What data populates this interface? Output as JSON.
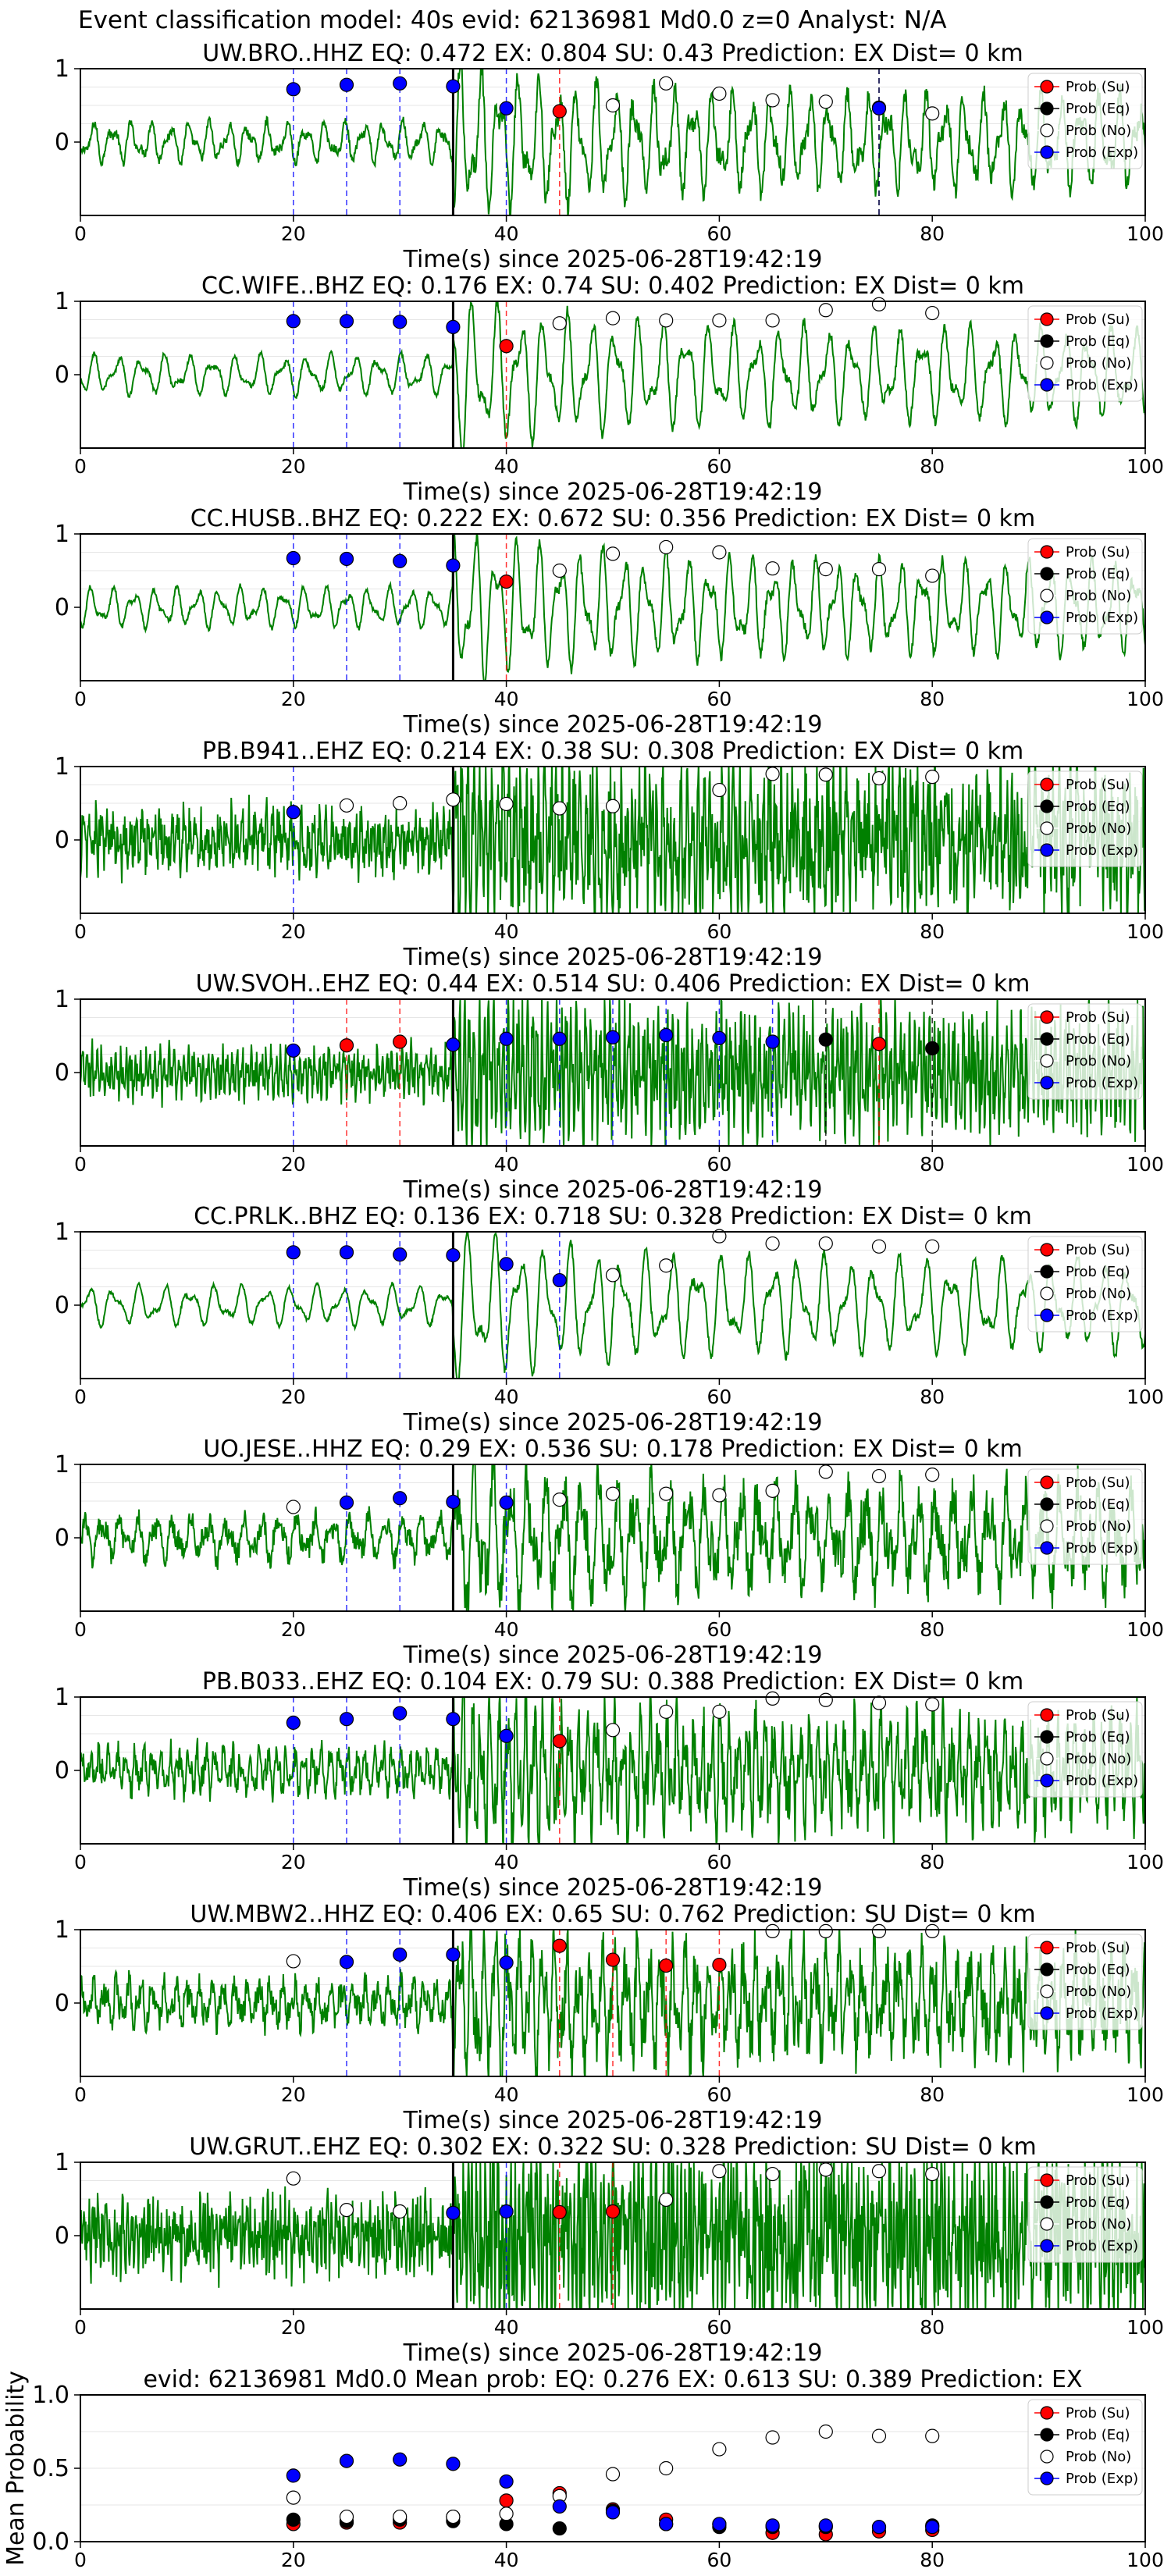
{
  "suptitle": "Event classification model: 40s evid: 62136981 Md0.0 z=0 Analyst: N/A",
  "colors": {
    "waveform": "#008000",
    "su": "#ff0000",
    "eq": "#000000",
    "no": "#ffffff",
    "exp": "#0000ff",
    "arrival_line": "#000000",
    "grid": "#e6e6e6"
  },
  "legend": {
    "placement": "top-right",
    "entries": [
      "Prob (Su)",
      "Prob (Eq)",
      "Prob (No)",
      "Prob (Exp)"
    ]
  },
  "chart_data": [
    {
      "type": "line",
      "title": "UW.BRO..HHZ    EQ: 0.472   EX: 0.804   SU: 0.43    Prediction: EX     Dist= 0 km",
      "xlabel": "Time(s) since 2025-06-28T19:42:19",
      "ylabel": "",
      "xlim": [
        0,
        100
      ],
      "ylim": [
        -1,
        1
      ],
      "xticks": [
        "0",
        "20",
        "40",
        "60",
        "80",
        "100"
      ],
      "yticks": [
        "0",
        "1"
      ],
      "arrival_time": 35,
      "waveform_noise": 0.1,
      "waveform_main_freq": 0.55,
      "grid": true,
      "points": {
        "exp": [
          [
            20,
            0.72
          ],
          [
            25,
            0.78
          ],
          [
            30,
            0.8
          ],
          [
            35,
            0.76
          ],
          [
            40,
            0.46
          ],
          [
            75,
            0.46
          ]
        ],
        "su": [
          [
            45,
            0.42
          ]
        ],
        "eq": [
          [
            75,
            0.47
          ]
        ],
        "no": [
          [
            50,
            0.5
          ],
          [
            55,
            0.8
          ],
          [
            60,
            0.66
          ],
          [
            65,
            0.57
          ],
          [
            70,
            0.55
          ],
          [
            80,
            0.39
          ]
        ]
      }
    },
    {
      "type": "line",
      "title": "CC.WIFE..BHZ    EQ: 0.176   EX: 0.74   SU: 0.402    Prediction: EX     Dist= 0 km",
      "xlabel": "Time(s) since 2025-06-28T19:42:19",
      "ylabel": "",
      "xlim": [
        0,
        100
      ],
      "ylim": [
        -1,
        1
      ],
      "xticks": [
        "0",
        "20",
        "40",
        "60",
        "80",
        "100"
      ],
      "yticks": [
        "0",
        "1"
      ],
      "arrival_time": 35,
      "waveform_noise": 0.05,
      "waveform_main_freq": 0.45,
      "grid": true,
      "points": {
        "exp": [
          [
            20,
            0.73
          ],
          [
            25,
            0.73
          ],
          [
            30,
            0.72
          ],
          [
            35,
            0.65
          ]
        ],
        "su": [
          [
            40,
            0.39
          ]
        ],
        "eq": [],
        "no": [
          [
            45,
            0.7
          ],
          [
            50,
            0.77
          ],
          [
            55,
            0.74
          ],
          [
            60,
            0.74
          ],
          [
            65,
            0.74
          ],
          [
            70,
            0.88
          ],
          [
            75,
            0.96
          ],
          [
            80,
            0.84
          ]
        ]
      }
    },
    {
      "type": "line",
      "title": "CC.HUSB..BHZ    EQ: 0.222   EX: 0.672   SU: 0.356    Prediction: EX     Dist= 0 km",
      "xlabel": "Time(s) since 2025-06-28T19:42:19",
      "ylabel": "",
      "xlim": [
        0,
        100
      ],
      "ylim": [
        -1,
        1
      ],
      "xticks": [
        "0",
        "20",
        "40",
        "60",
        "80",
        "100"
      ],
      "yticks": [
        "0",
        "1"
      ],
      "arrival_time": 35,
      "waveform_noise": 0.05,
      "waveform_main_freq": 0.5,
      "grid": true,
      "points": {
        "exp": [
          [
            20,
            0.67
          ],
          [
            25,
            0.66
          ],
          [
            30,
            0.63
          ],
          [
            35,
            0.57
          ]
        ],
        "su": [
          [
            40,
            0.35
          ]
        ],
        "eq": [],
        "no": [
          [
            45,
            0.5
          ],
          [
            50,
            0.73
          ],
          [
            55,
            0.82
          ],
          [
            60,
            0.75
          ],
          [
            65,
            0.53
          ],
          [
            70,
            0.52
          ],
          [
            75,
            0.52
          ],
          [
            80,
            0.43
          ]
        ]
      }
    },
    {
      "type": "line",
      "title": "PB.B941..EHZ    EQ: 0.214   EX: 0.38   SU: 0.308    Prediction: EX     Dist= 0 km",
      "xlabel": "Time(s) since 2025-06-28T19:42:19",
      "ylabel": "",
      "xlim": [
        0,
        100
      ],
      "ylim": [
        -1,
        1
      ],
      "xticks": [
        "0",
        "20",
        "40",
        "60",
        "80",
        "100"
      ],
      "yticks": [
        "0",
        "1"
      ],
      "arrival_time": 35,
      "waveform_noise": 0.55,
      "waveform_main_freq": 1.8,
      "grid": true,
      "points": {
        "exp": [
          [
            20,
            0.38
          ]
        ],
        "su": [],
        "eq": [],
        "no": [
          [
            25,
            0.47
          ],
          [
            30,
            0.5
          ],
          [
            35,
            0.55
          ],
          [
            40,
            0.49
          ],
          [
            45,
            0.43
          ],
          [
            50,
            0.46
          ],
          [
            60,
            0.68
          ],
          [
            65,
            0.9
          ],
          [
            70,
            0.89
          ],
          [
            75,
            0.84
          ],
          [
            80,
            0.86
          ]
        ]
      }
    },
    {
      "type": "line",
      "title": "UW.SVOH..EHZ    EQ: 0.44   EX: 0.514   SU: 0.406    Prediction: EX     Dist= 0 km",
      "xlabel": "Time(s) since 2025-06-28T19:42:19",
      "ylabel": "",
      "xlim": [
        0,
        100
      ],
      "ylim": [
        -1,
        1
      ],
      "xticks": [
        "0",
        "20",
        "40",
        "60",
        "80",
        "100"
      ],
      "yticks": [
        "0",
        "1"
      ],
      "arrival_time": 35,
      "waveform_noise": 0.35,
      "waveform_main_freq": 2.2,
      "grid": true,
      "points": {
        "exp": [
          [
            20,
            0.3
          ],
          [
            35,
            0.38
          ],
          [
            40,
            0.46
          ],
          [
            45,
            0.46
          ],
          [
            50,
            0.48
          ],
          [
            55,
            0.51
          ],
          [
            60,
            0.47
          ],
          [
            65,
            0.42
          ]
        ],
        "su": [
          [
            25,
            0.37
          ],
          [
            30,
            0.42
          ],
          [
            75,
            0.39
          ]
        ],
        "eq": [
          [
            70,
            0.45
          ],
          [
            80,
            0.33
          ]
        ],
        "no": []
      }
    },
    {
      "type": "line",
      "title": "CC.PRLK..BHZ    EQ: 0.136   EX: 0.718   SU: 0.328    Prediction: EX     Dist= 0 km",
      "xlabel": "Time(s) since 2025-06-28T19:42:19",
      "ylabel": "",
      "xlim": [
        0,
        100
      ],
      "ylim": [
        -1,
        1
      ],
      "xticks": [
        "0",
        "20",
        "40",
        "60",
        "80",
        "100"
      ],
      "yticks": [
        "0",
        "1"
      ],
      "arrival_time": 35,
      "waveform_noise": 0.04,
      "waveform_main_freq": 0.42,
      "grid": true,
      "points": {
        "exp": [
          [
            20,
            0.72
          ],
          [
            25,
            0.72
          ],
          [
            30,
            0.69
          ],
          [
            35,
            0.68
          ],
          [
            40,
            0.56
          ],
          [
            45,
            0.34
          ]
        ],
        "su": [],
        "eq": [],
        "no": [
          [
            50,
            0.41
          ],
          [
            55,
            0.54
          ],
          [
            60,
            0.94
          ],
          [
            65,
            0.84
          ],
          [
            70,
            0.84
          ],
          [
            75,
            0.8
          ],
          [
            80,
            0.8
          ]
        ]
      }
    },
    {
      "type": "line",
      "title": "UO.JESE..HHZ    EQ: 0.29   EX: 0.536   SU: 0.178    Prediction: EX     Dist= 0 km",
      "xlabel": "Time(s) since 2025-06-28T19:42:19",
      "ylabel": "",
      "xlim": [
        0,
        100
      ],
      "ylim": [
        -1,
        1
      ],
      "xticks": [
        "0",
        "20",
        "40",
        "60",
        "80",
        "100"
      ],
      "yticks": [
        "0",
        "1"
      ],
      "arrival_time": 35,
      "waveform_noise": 0.25,
      "waveform_main_freq": 0.6,
      "grid": true,
      "points": {
        "exp": [
          [
            25,
            0.48
          ],
          [
            30,
            0.54
          ],
          [
            35,
            0.49
          ],
          [
            40,
            0.48
          ]
        ],
        "su": [],
        "eq": [],
        "no": [
          [
            20,
            0.42
          ],
          [
            45,
            0.52
          ],
          [
            50,
            0.6
          ],
          [
            55,
            0.6
          ],
          [
            60,
            0.58
          ],
          [
            65,
            0.64
          ],
          [
            70,
            0.9
          ],
          [
            75,
            0.84
          ],
          [
            80,
            0.86
          ]
        ]
      }
    },
    {
      "type": "line",
      "title": "PB.B033..EHZ    EQ: 0.104   EX: 0.79   SU: 0.388    Prediction: EX     Dist= 0 km",
      "xlabel": "Time(s) since 2025-06-28T19:42:19",
      "ylabel": "",
      "xlim": [
        0,
        100
      ],
      "ylim": [
        -1,
        1
      ],
      "xticks": [
        "0",
        "20",
        "40",
        "60",
        "80",
        "100"
      ],
      "yticks": [
        "0",
        "1"
      ],
      "arrival_time": 35,
      "waveform_noise": 0.3,
      "waveform_main_freq": 1.2,
      "grid": true,
      "points": {
        "exp": [
          [
            20,
            0.65
          ],
          [
            25,
            0.7
          ],
          [
            30,
            0.78
          ],
          [
            35,
            0.7
          ],
          [
            40,
            0.47
          ]
        ],
        "su": [
          [
            45,
            0.4
          ]
        ],
        "eq": [],
        "no": [
          [
            50,
            0.55
          ],
          [
            55,
            0.8
          ],
          [
            60,
            0.8
          ],
          [
            65,
            0.98
          ],
          [
            70,
            0.96
          ],
          [
            75,
            0.92
          ],
          [
            80,
            0.9
          ]
        ]
      }
    },
    {
      "type": "line",
      "title": "UW.MBW2..HHZ    EQ: 0.406   EX: 0.65   SU: 0.762    Prediction: SU     Dist= 0 km",
      "xlabel": "Time(s) since 2025-06-28T19:42:19",
      "ylabel": "",
      "xlim": [
        0,
        100
      ],
      "ylim": [
        -1,
        1
      ],
      "xticks": [
        "0",
        "20",
        "40",
        "60",
        "80",
        "100"
      ],
      "yticks": [
        "0",
        "1"
      ],
      "arrival_time": 35,
      "waveform_noise": 0.3,
      "waveform_main_freq": 0.9,
      "grid": true,
      "points": {
        "exp": [
          [
            25,
            0.56
          ],
          [
            30,
            0.66
          ],
          [
            35,
            0.66
          ],
          [
            40,
            0.55
          ]
        ],
        "su": [
          [
            45,
            0.78
          ],
          [
            50,
            0.59
          ],
          [
            55,
            0.51
          ],
          [
            60,
            0.52
          ]
        ],
        "eq": [],
        "no": [
          [
            20,
            0.57
          ],
          [
            65,
            0.98
          ],
          [
            70,
            0.98
          ],
          [
            75,
            0.98
          ],
          [
            80,
            0.98
          ]
        ]
      }
    },
    {
      "type": "line",
      "title": "UW.GRUT..EHZ    EQ: 0.302   EX: 0.322   SU: 0.328    Prediction: SU     Dist= 0 km",
      "xlabel": "Time(s) since 2025-06-28T19:42:19",
      "ylabel": "",
      "xlim": [
        0,
        100
      ],
      "ylim": [
        -1,
        1
      ],
      "xticks": [
        "0",
        "20",
        "40",
        "60",
        "80",
        "100"
      ],
      "yticks": [
        "0",
        "1"
      ],
      "arrival_time": 35,
      "waveform_noise": 0.7,
      "waveform_main_freq": 2.5,
      "grid": true,
      "points": {
        "exp": [
          [
            35,
            0.31
          ],
          [
            40,
            0.33
          ]
        ],
        "su": [
          [
            45,
            0.32
          ],
          [
            50,
            0.33
          ]
        ],
        "eq": [],
        "no": [
          [
            20,
            0.78
          ],
          [
            25,
            0.35
          ],
          [
            30,
            0.33
          ],
          [
            55,
            0.49
          ],
          [
            60,
            0.88
          ],
          [
            65,
            0.84
          ],
          [
            70,
            0.9
          ],
          [
            75,
            0.88
          ],
          [
            80,
            0.84
          ]
        ]
      }
    },
    {
      "type": "scatter",
      "title": "evid: 62136981   Md0.0    Mean prob:    EQ: 0.276   EX: 0.613   SU: 0.389    Prediction: EX",
      "xlabel": "",
      "ylabel": "Mean Probability",
      "xlim": [
        0,
        100
      ],
      "ylim": [
        0,
        1
      ],
      "xticks": [
        "0",
        "20",
        "40",
        "60",
        "80",
        "100"
      ],
      "yticks": [
        "0.0",
        "0.5",
        "1.0"
      ],
      "grid": true,
      "points": {
        "su": [
          [
            20,
            0.12
          ],
          [
            25,
            0.13
          ],
          [
            30,
            0.13
          ],
          [
            35,
            0.17
          ],
          [
            40,
            0.28
          ],
          [
            45,
            0.33
          ],
          [
            50,
            0.22
          ],
          [
            55,
            0.15
          ],
          [
            60,
            0.12
          ],
          [
            65,
            0.06
          ],
          [
            70,
            0.05
          ],
          [
            75,
            0.07
          ],
          [
            80,
            0.08
          ]
        ],
        "eq": [
          [
            20,
            0.15
          ],
          [
            25,
            0.14
          ],
          [
            30,
            0.15
          ],
          [
            35,
            0.14
          ],
          [
            40,
            0.12
          ],
          [
            45,
            0.09
          ],
          [
            50,
            0.21
          ],
          [
            55,
            0.12
          ],
          [
            60,
            0.1
          ],
          [
            65,
            0.1
          ],
          [
            70,
            0.1
          ],
          [
            75,
            0.1
          ],
          [
            80,
            0.11
          ]
        ],
        "no": [
          [
            20,
            0.3
          ],
          [
            25,
            0.17
          ],
          [
            30,
            0.17
          ],
          [
            35,
            0.17
          ],
          [
            40,
            0.19
          ],
          [
            45,
            0.31
          ],
          [
            50,
            0.46
          ],
          [
            55,
            0.5
          ],
          [
            60,
            0.63
          ],
          [
            65,
            0.71
          ],
          [
            70,
            0.75
          ],
          [
            75,
            0.72
          ],
          [
            80,
            0.72
          ]
        ],
        "exp": [
          [
            20,
            0.45
          ],
          [
            25,
            0.55
          ],
          [
            30,
            0.56
          ],
          [
            35,
            0.53
          ],
          [
            40,
            0.41
          ],
          [
            45,
            0.24
          ],
          [
            50,
            0.2
          ],
          [
            55,
            0.12
          ],
          [
            60,
            0.12
          ],
          [
            65,
            0.11
          ],
          [
            70,
            0.11
          ],
          [
            75,
            0.1
          ],
          [
            80,
            0.1
          ]
        ]
      }
    }
  ]
}
